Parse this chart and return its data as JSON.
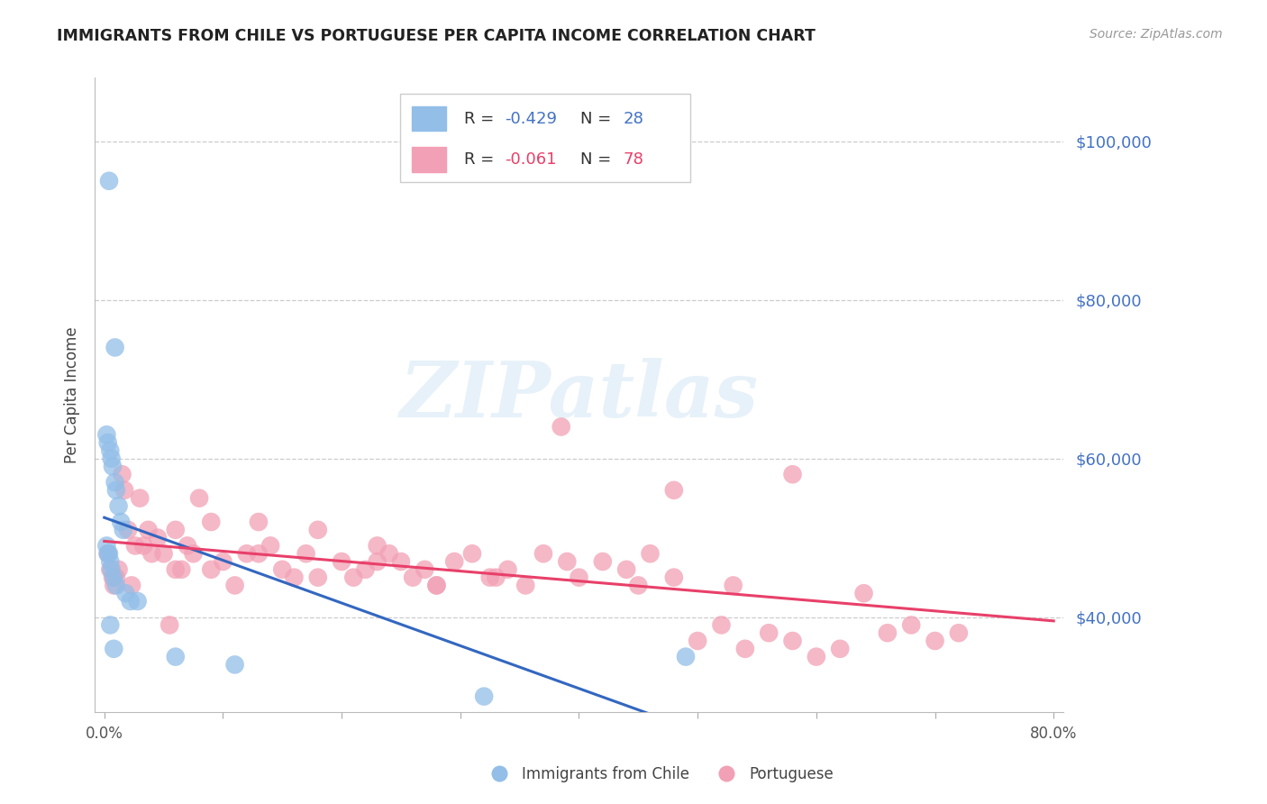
{
  "title": "IMMIGRANTS FROM CHILE VS PORTUGUESE PER CAPITA INCOME CORRELATION CHART",
  "source_text": "Source: ZipAtlas.com",
  "ylabel": "Per Capita Income",
  "xlim_data": [
    0.0,
    0.8
  ],
  "ylim_data": [
    28000,
    108000
  ],
  "yticks": [
    40000,
    60000,
    80000,
    100000
  ],
  "ytick_labels": [
    "$40,000",
    "$60,000",
    "$80,000",
    "$100,000"
  ],
  "r_chile": -0.429,
  "n_chile": 28,
  "r_portuguese": -0.061,
  "n_portuguese": 78,
  "chile_color": "#92BEE8",
  "portuguese_color": "#F2A0B5",
  "chile_line_color": "#3367C0",
  "portuguese_line_color": "#E8406A",
  "r_color_blue": "#4472C4",
  "r_color_pink": "#E8406A",
  "legend_label_chile": "Immigrants from Chile",
  "legend_label_portuguese": "Portuguese",
  "chile_x": [
    0.004,
    0.009,
    0.002,
    0.003,
    0.005,
    0.006,
    0.007,
    0.009,
    0.01,
    0.012,
    0.014,
    0.016,
    0.002,
    0.003,
    0.004,
    0.005,
    0.006,
    0.008,
    0.01,
    0.018,
    0.022,
    0.028,
    0.005,
    0.008,
    0.06,
    0.11,
    0.32,
    0.49
  ],
  "chile_y": [
    95000,
    74000,
    63000,
    62000,
    61000,
    60000,
    59000,
    57000,
    56000,
    54000,
    52000,
    51000,
    49000,
    48000,
    48000,
    47000,
    46000,
    45000,
    44000,
    43000,
    42000,
    42000,
    39000,
    36000,
    35000,
    34000,
    30000,
    35000
  ],
  "portuguese_x": [
    0.003,
    0.005,
    0.007,
    0.008,
    0.01,
    0.012,
    0.015,
    0.017,
    0.02,
    0.023,
    0.026,
    0.03,
    0.033,
    0.037,
    0.04,
    0.045,
    0.05,
    0.055,
    0.06,
    0.065,
    0.07,
    0.075,
    0.08,
    0.09,
    0.1,
    0.11,
    0.12,
    0.13,
    0.14,
    0.15,
    0.16,
    0.17,
    0.18,
    0.2,
    0.21,
    0.22,
    0.23,
    0.24,
    0.25,
    0.26,
    0.27,
    0.28,
    0.295,
    0.31,
    0.325,
    0.34,
    0.355,
    0.37,
    0.385,
    0.4,
    0.42,
    0.44,
    0.46,
    0.48,
    0.5,
    0.52,
    0.54,
    0.56,
    0.58,
    0.6,
    0.62,
    0.64,
    0.66,
    0.68,
    0.7,
    0.72,
    0.06,
    0.09,
    0.13,
    0.18,
    0.23,
    0.28,
    0.33,
    0.39,
    0.45,
    0.48,
    0.53,
    0.58
  ],
  "portuguese_y": [
    48000,
    46000,
    45000,
    44000,
    45000,
    46000,
    58000,
    56000,
    51000,
    44000,
    49000,
    55000,
    49000,
    51000,
    48000,
    50000,
    48000,
    39000,
    46000,
    46000,
    49000,
    48000,
    55000,
    52000,
    47000,
    44000,
    48000,
    52000,
    49000,
    46000,
    45000,
    48000,
    51000,
    47000,
    45000,
    46000,
    49000,
    48000,
    47000,
    45000,
    46000,
    44000,
    47000,
    48000,
    45000,
    46000,
    44000,
    48000,
    64000,
    45000,
    47000,
    46000,
    48000,
    45000,
    37000,
    39000,
    36000,
    38000,
    37000,
    35000,
    36000,
    43000,
    38000,
    39000,
    37000,
    38000,
    51000,
    46000,
    48000,
    45000,
    47000,
    44000,
    45000,
    47000,
    44000,
    56000,
    44000,
    58000
  ]
}
